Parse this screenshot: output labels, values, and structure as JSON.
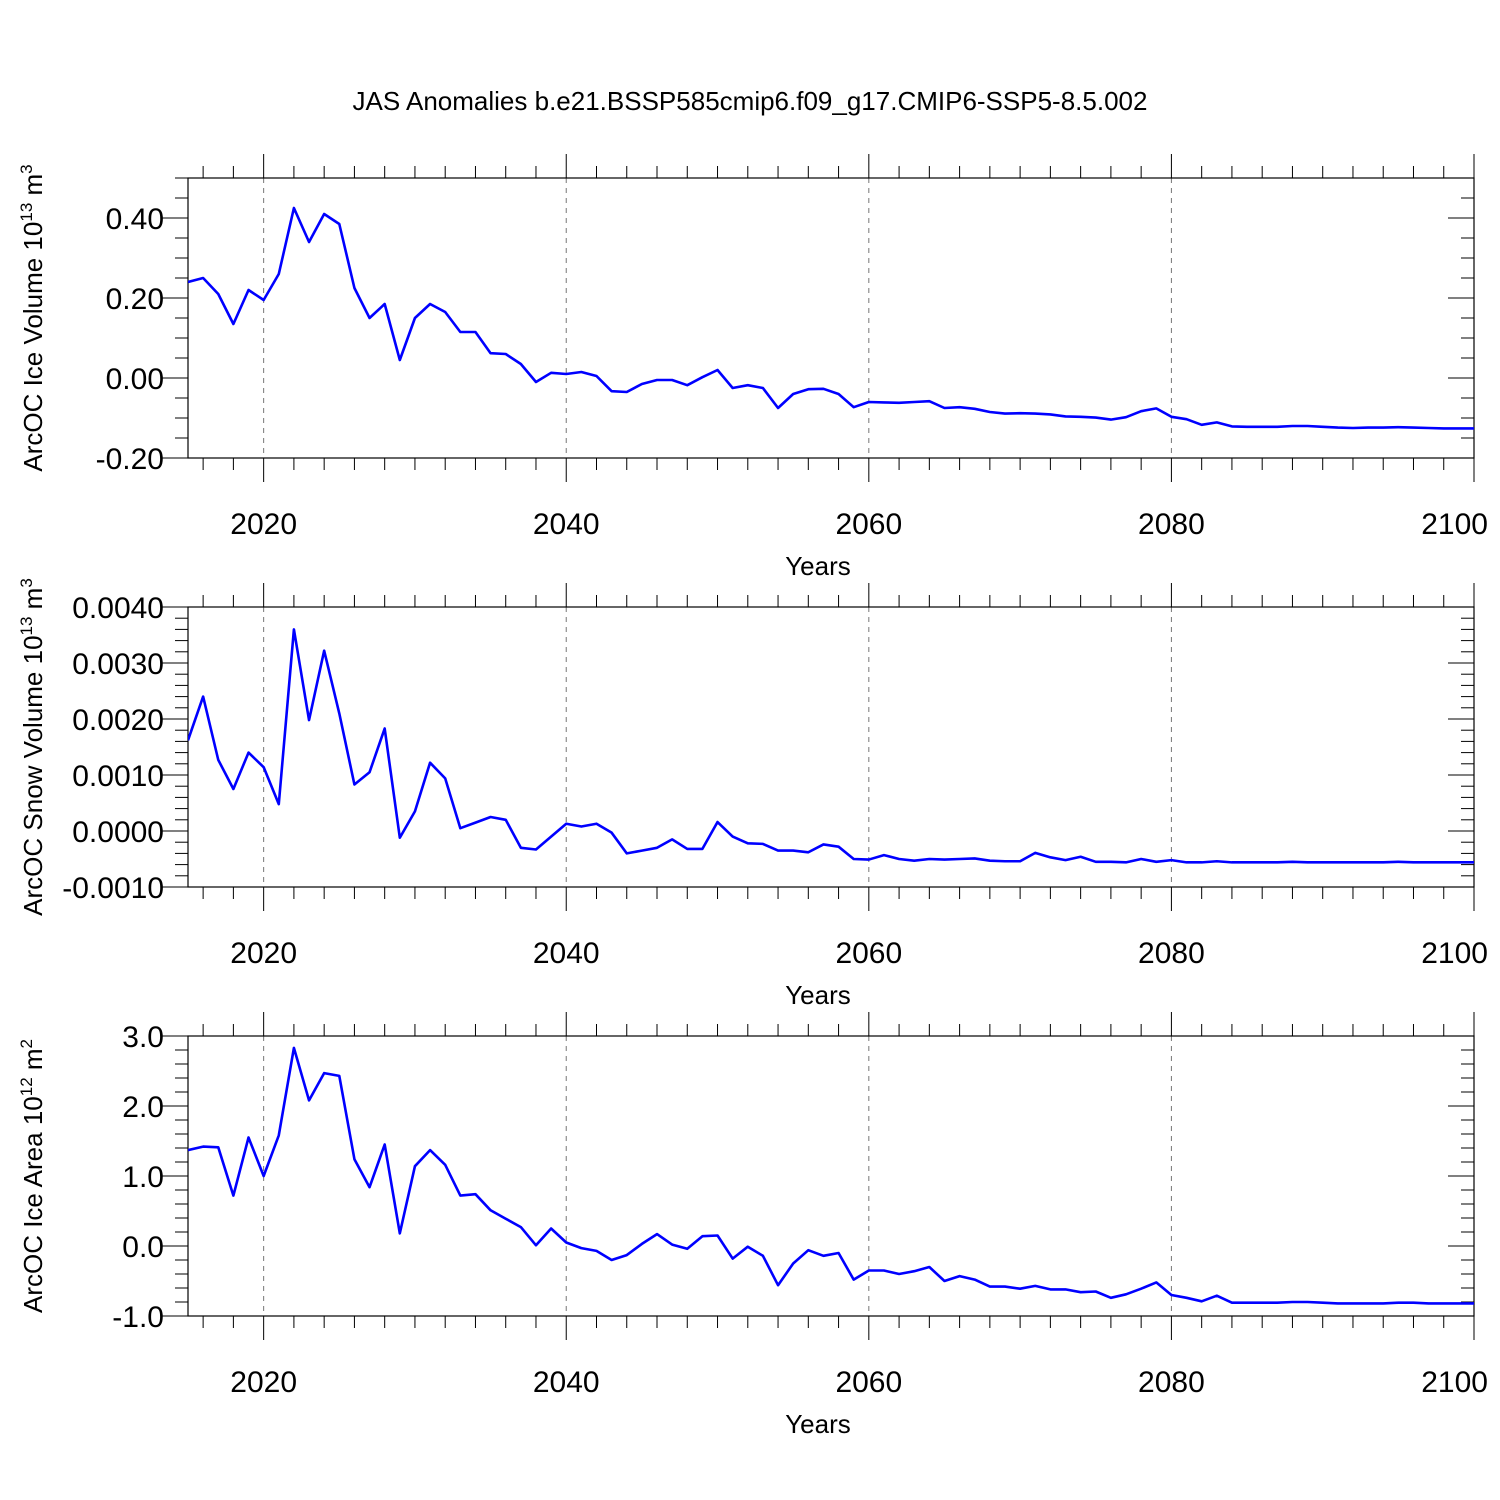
{
  "title": "JAS Anomalies b.e21.BSSP585cmip6.f09_g17.CMIP6-SSP5-8.5.002",
  "colors": {
    "line": "#0000ff",
    "frame": "#000000",
    "grid": "#777777"
  },
  "chart_data": [
    {
      "type": "line",
      "ylabel": "ArcOC Ice Volume 10",
      "ylabel_sup": "13",
      "ylabel_unit": " m",
      "ylabel_unit_sup": "3",
      "xlabel": "Years",
      "xlim": [
        2015,
        2100
      ],
      "ylim": [
        -0.2,
        0.5
      ],
      "xticks": [
        2020,
        2040,
        2060,
        2080,
        2100
      ],
      "xtick_labels": [
        "2020",
        "2040",
        "2060",
        "2080",
        "2100"
      ],
      "yticks": [
        -0.2,
        0.0,
        0.2,
        0.4
      ],
      "ytick_labels": [
        "-0.20",
        "0.00",
        "0.20",
        "0.40"
      ],
      "y_minor_step": 0.05,
      "grid": "vertical dashed at major x ticks",
      "series": [
        {
          "x": [
            2015,
            2016,
            2017,
            2018,
            2019,
            2020,
            2021,
            2022,
            2023,
            2024,
            2025,
            2026,
            2027,
            2028,
            2029,
            2030,
            2031,
            2032,
            2033,
            2034,
            2035,
            2036,
            2037,
            2038,
            2039,
            2040,
            2041,
            2042,
            2043,
            2044,
            2045,
            2046,
            2047,
            2048,
            2049,
            2050,
            2051,
            2052,
            2053,
            2054,
            2055,
            2056,
            2057,
            2058,
            2059,
            2060,
            2061,
            2062,
            2063,
            2064,
            2065,
            2066,
            2067,
            2068,
            2069,
            2070,
            2071,
            2072,
            2073,
            2074,
            2075,
            2076,
            2077,
            2078,
            2079,
            2080,
            2081,
            2082,
            2083,
            2084,
            2085,
            2086,
            2087,
            2088,
            2089,
            2090,
            2091,
            2092,
            2093,
            2094,
            2095,
            2096,
            2097,
            2098,
            2099,
            2100
          ],
          "y": [
            0.24,
            0.25,
            0.21,
            0.135,
            0.22,
            0.195,
            0.26,
            0.425,
            0.34,
            0.41,
            0.385,
            0.225,
            0.15,
            0.185,
            0.045,
            0.15,
            0.185,
            0.165,
            0.115,
            0.115,
            0.062,
            0.06,
            0.035,
            -0.01,
            0.013,
            0.01,
            0.015,
            0.005,
            -0.033,
            -0.035,
            -0.015,
            -0.005,
            -0.005,
            -0.018,
            0.002,
            0.02,
            -0.025,
            -0.018,
            -0.025,
            -0.075,
            -0.04,
            -0.028,
            -0.027,
            -0.04,
            -0.073,
            -0.06,
            -0.061,
            -0.062,
            -0.06,
            -0.058,
            -0.075,
            -0.073,
            -0.077,
            -0.085,
            -0.089,
            -0.088,
            -0.089,
            -0.091,
            -0.096,
            -0.097,
            -0.099,
            -0.104,
            -0.098,
            -0.083,
            -0.076,
            -0.097,
            -0.103,
            -0.117,
            -0.111,
            -0.121,
            -0.122,
            -0.122,
            -0.122,
            -0.12,
            -0.12,
            -0.122,
            -0.124,
            -0.125,
            -0.124,
            -0.124,
            -0.123,
            -0.124,
            -0.125,
            -0.126,
            -0.126,
            -0.126
          ]
        }
      ]
    },
    {
      "type": "line",
      "ylabel": "ArcOC Snow Volume 10",
      "ylabel_sup": "13",
      "ylabel_unit": " m",
      "ylabel_unit_sup": "3",
      "xlabel": "Years",
      "xlim": [
        2015,
        2100
      ],
      "ylim": [
        -0.001,
        0.004
      ],
      "xticks": [
        2020,
        2040,
        2060,
        2080,
        2100
      ],
      "xtick_labels": [
        "2020",
        "2040",
        "2060",
        "2080",
        "2100"
      ],
      "yticks": [
        -0.001,
        0.0,
        0.001,
        0.002,
        0.003,
        0.004
      ],
      "ytick_labels": [
        "-0.0010",
        "0.0000",
        "0.0010",
        "0.0020",
        "0.0030",
        "0.0040"
      ],
      "y_minor_step": 0.0002,
      "grid": "vertical dashed at major x ticks",
      "series": [
        {
          "x": [
            2015,
            2016,
            2017,
            2018,
            2019,
            2020,
            2021,
            2022,
            2023,
            2024,
            2025,
            2026,
            2027,
            2028,
            2029,
            2030,
            2031,
            2032,
            2033,
            2034,
            2035,
            2036,
            2037,
            2038,
            2039,
            2040,
            2041,
            2042,
            2043,
            2044,
            2045,
            2046,
            2047,
            2048,
            2049,
            2050,
            2051,
            2052,
            2053,
            2054,
            2055,
            2056,
            2057,
            2058,
            2059,
            2060,
            2061,
            2062,
            2063,
            2064,
            2065,
            2066,
            2067,
            2068,
            2069,
            2070,
            2071,
            2072,
            2073,
            2074,
            2075,
            2076,
            2077,
            2078,
            2079,
            2080,
            2081,
            2082,
            2083,
            2084,
            2085,
            2086,
            2087,
            2088,
            2089,
            2090,
            2091,
            2092,
            2093,
            2094,
            2095,
            2096,
            2097,
            2098,
            2099,
            2100
          ],
          "y": [
            0.00162,
            0.0024,
            0.00127,
            0.00075,
            0.0014,
            0.00114,
            0.00048,
            0.0036,
            0.00198,
            0.00322,
            0.0021,
            0.00083,
            0.00105,
            0.00183,
            -0.00012,
            0.00035,
            0.00122,
            0.00094,
            5e-05,
            0.00015,
            0.00025,
            0.0002,
            -0.0003,
            -0.00033,
            -0.0001,
            0.00013,
            8e-05,
            0.00013,
            -3e-05,
            -0.0004,
            -0.00035,
            -0.0003,
            -0.00015,
            -0.00032,
            -0.00032,
            0.00016,
            -0.0001,
            -0.00022,
            -0.00023,
            -0.00035,
            -0.00035,
            -0.00038,
            -0.00024,
            -0.00028,
            -0.0005,
            -0.00051,
            -0.00043,
            -0.0005,
            -0.00053,
            -0.0005,
            -0.00051,
            -0.0005,
            -0.00049,
            -0.00053,
            -0.00054,
            -0.00054,
            -0.00039,
            -0.00047,
            -0.00052,
            -0.00046,
            -0.00055,
            -0.00055,
            -0.00056,
            -0.0005,
            -0.00055,
            -0.00052,
            -0.00056,
            -0.00056,
            -0.00054,
            -0.00056,
            -0.00056,
            -0.00056,
            -0.00056,
            -0.00055,
            -0.00056,
            -0.00056,
            -0.00056,
            -0.00056,
            -0.00056,
            -0.00056,
            -0.00055,
            -0.00056,
            -0.00056,
            -0.00056,
            -0.00056,
            -0.00056
          ]
        }
      ]
    },
    {
      "type": "line",
      "ylabel": "ArcOC Ice Area 10",
      "ylabel_sup": "12",
      "ylabel_unit": " m",
      "ylabel_unit_sup": "2",
      "xlabel": "Years",
      "xlim": [
        2015,
        2100
      ],
      "ylim": [
        -1.0,
        3.0
      ],
      "xticks": [
        2020,
        2040,
        2060,
        2080,
        2100
      ],
      "xtick_labels": [
        "2020",
        "2040",
        "2060",
        "2080",
        "2100"
      ],
      "yticks": [
        -1.0,
        0.0,
        1.0,
        2.0,
        3.0
      ],
      "ytick_labels": [
        "-1.0",
        "0.0",
        "1.0",
        "2.0",
        "3.0"
      ],
      "y_minor_step": 0.2,
      "grid": "vertical dashed at major x ticks",
      "series": [
        {
          "x": [
            2015,
            2016,
            2017,
            2018,
            2019,
            2020,
            2021,
            2022,
            2023,
            2024,
            2025,
            2026,
            2027,
            2028,
            2029,
            2030,
            2031,
            2032,
            2033,
            2034,
            2035,
            2036,
            2037,
            2038,
            2039,
            2040,
            2041,
            2042,
            2043,
            2044,
            2045,
            2046,
            2047,
            2048,
            2049,
            2050,
            2051,
            2052,
            2053,
            2054,
            2055,
            2056,
            2057,
            2058,
            2059,
            2060,
            2061,
            2062,
            2063,
            2064,
            2065,
            2066,
            2067,
            2068,
            2069,
            2070,
            2071,
            2072,
            2073,
            2074,
            2075,
            2076,
            2077,
            2078,
            2079,
            2080,
            2081,
            2082,
            2083,
            2084,
            2085,
            2086,
            2087,
            2088,
            2089,
            2090,
            2091,
            2092,
            2093,
            2094,
            2095,
            2096,
            2097,
            2098,
            2099,
            2100
          ],
          "y": [
            1.37,
            1.42,
            1.41,
            0.72,
            1.55,
            1.0,
            1.58,
            2.83,
            2.08,
            2.47,
            2.43,
            1.24,
            0.84,
            1.45,
            0.18,
            1.14,
            1.37,
            1.16,
            0.72,
            0.74,
            0.51,
            0.39,
            0.27,
            0.01,
            0.25,
            0.05,
            -0.03,
            -0.07,
            -0.2,
            -0.13,
            0.03,
            0.17,
            0.02,
            -0.04,
            0.14,
            0.15,
            -0.18,
            -0.01,
            -0.14,
            -0.56,
            -0.25,
            -0.06,
            -0.14,
            -0.1,
            -0.48,
            -0.35,
            -0.35,
            -0.4,
            -0.36,
            -0.3,
            -0.5,
            -0.43,
            -0.48,
            -0.58,
            -0.58,
            -0.61,
            -0.57,
            -0.62,
            -0.62,
            -0.66,
            -0.65,
            -0.74,
            -0.69,
            -0.61,
            -0.52,
            -0.7,
            -0.74,
            -0.79,
            -0.71,
            -0.81,
            -0.81,
            -0.81,
            -0.81,
            -0.8,
            -0.8,
            -0.81,
            -0.82,
            -0.82,
            -0.82,
            -0.82,
            -0.81,
            -0.81,
            -0.82,
            -0.82,
            -0.82,
            -0.82
          ]
        }
      ]
    }
  ]
}
